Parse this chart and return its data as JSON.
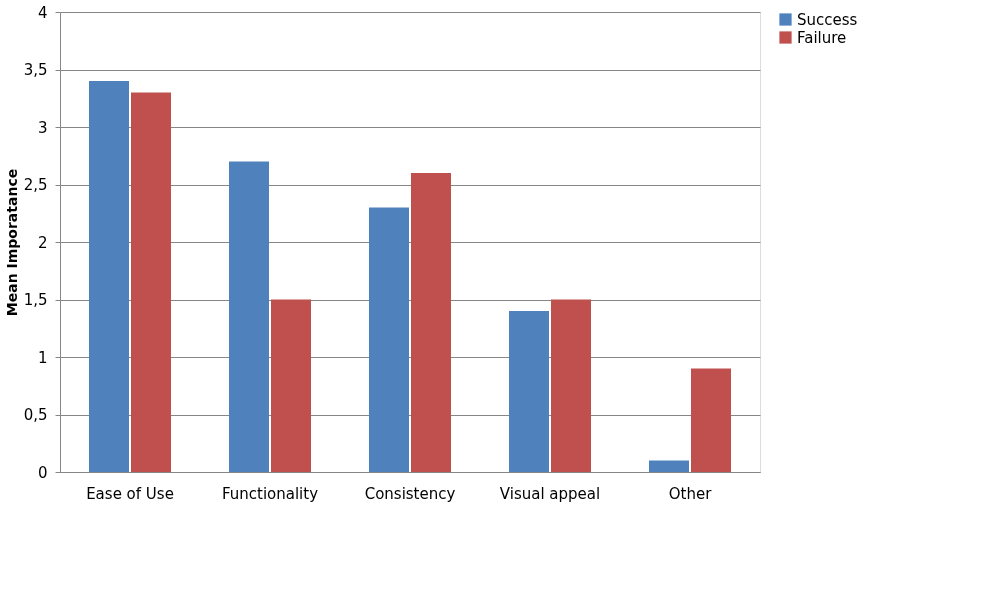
{
  "chart_data": {
    "type": "bar",
    "ylabel": "Mean Imporatance",
    "categories": [
      "Ease of Use",
      "Functionality",
      "Consistency",
      "Visual appeal",
      "Other"
    ],
    "series": [
      {
        "name": "Success",
        "color": "#4f81bd",
        "values": [
          3.4,
          2.7,
          2.3,
          1.4,
          0.1
        ]
      },
      {
        "name": "Failure",
        "color": "#c0504d",
        "values": [
          3.3,
          1.5,
          2.6,
          1.5,
          0.9
        ]
      }
    ],
    "ylim": [
      0,
      4
    ],
    "yticks": [
      0,
      {
        "value": 0.5,
        "label": "0,5"
      },
      1,
      {
        "value": 1.5,
        "label": "1,5"
      },
      2,
      {
        "value": 2.5,
        "label": "2,5"
      },
      3,
      {
        "value": 3.5,
        "label": "3,5"
      },
      4
    ],
    "grid": "y",
    "legend": "right"
  }
}
